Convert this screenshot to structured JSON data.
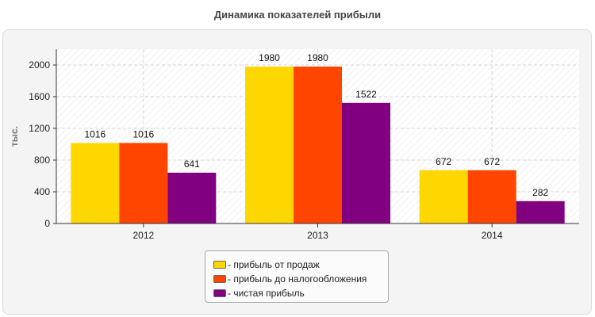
{
  "chart_data": {
    "type": "bar",
    "title": "Динамика показателей прибыли",
    "ylabel": "тыс.",
    "xlabel": "",
    "categories": [
      "2012",
      "2013",
      "2014"
    ],
    "ylim": [
      0,
      2200
    ],
    "yticks": [
      0,
      400,
      800,
      1200,
      1600,
      2000
    ],
    "grid": true,
    "legend_position": "bottom-center",
    "series": [
      {
        "name": "- прибыль от продаж",
        "color": "#ffd700",
        "values": [
          1016,
          1980,
          672
        ]
      },
      {
        "name": "- прибыль до налогообложения",
        "color": "#ff4500",
        "values": [
          1016,
          1980,
          672
        ]
      },
      {
        "name": "- чистая прибыль",
        "color": "#800080",
        "values": [
          641,
          1522,
          282
        ]
      }
    ]
  }
}
